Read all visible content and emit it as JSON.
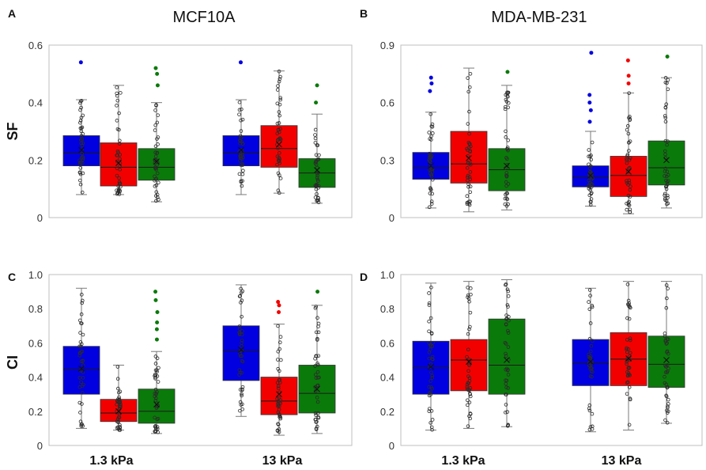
{
  "figure": {
    "titles": [
      "MCF10A",
      "MDA-MB-231"
    ],
    "x_labels": [
      "1.3 kPa",
      "13 kPa"
    ]
  },
  "colors": {
    "blue": "#0000e0",
    "red": "#f20000",
    "green": "#0a7a0a"
  },
  "chart_data": [
    {
      "type": "box",
      "panel": "A",
      "cell_line": "MCF10A",
      "ylabel": "SF",
      "ylim": [
        0,
        0.6
      ],
      "yticks": [
        "0",
        "0.2",
        "0.4",
        "0.6"
      ],
      "groups": [
        "1.3 kPa",
        "13 kPa"
      ],
      "boxes": [
        {
          "group": "1.3 kPa",
          "color": "blue",
          "min": 0.08,
          "q1": 0.18,
          "median": 0.225,
          "mean": 0.235,
          "q3": 0.285,
          "max": 0.41,
          "outliers": [
            0.54
          ]
        },
        {
          "group": "1.3 kPa",
          "color": "red",
          "min": 0.08,
          "q1": 0.11,
          "median": 0.175,
          "mean": 0.19,
          "q3": 0.26,
          "max": 0.46,
          "outliers": []
        },
        {
          "group": "1.3 kPa",
          "color": "green",
          "min": 0.055,
          "q1": 0.13,
          "median": 0.175,
          "mean": 0.195,
          "q3": 0.24,
          "max": 0.4,
          "outliers": [
            0.46,
            0.5,
            0.52
          ]
        },
        {
          "group": "13 kPa",
          "color": "blue",
          "min": 0.08,
          "q1": 0.18,
          "median": 0.225,
          "mean": 0.235,
          "q3": 0.285,
          "max": 0.41,
          "outliers": [
            0.54
          ]
        },
        {
          "group": "13 kPa",
          "color": "red",
          "min": 0.085,
          "q1": 0.175,
          "median": 0.24,
          "mean": 0.255,
          "q3": 0.32,
          "max": 0.51,
          "outliers": []
        },
        {
          "group": "13 kPa",
          "color": "green",
          "min": 0.05,
          "q1": 0.105,
          "median": 0.155,
          "mean": 0.165,
          "q3": 0.205,
          "max": 0.36,
          "outliers": [
            0.4,
            0.46
          ]
        }
      ]
    },
    {
      "type": "box",
      "panel": "B",
      "cell_line": "MDA-MB-231",
      "ylabel": "",
      "ylim": [
        0,
        0.9
      ],
      "yticks": [
        "0",
        "0.3",
        "0.6",
        "0.9"
      ],
      "groups": [
        "1.3 kPa",
        "13 kPa"
      ],
      "boxes": [
        {
          "group": "1.3 kPa",
          "color": "blue",
          "min": 0.05,
          "q1": 0.2,
          "median": 0.26,
          "mean": 0.27,
          "q3": 0.34,
          "max": 0.55,
          "outliers": [
            0.66,
            0.7,
            0.73
          ]
        },
        {
          "group": "1.3 kPa",
          "color": "red",
          "min": 0.03,
          "q1": 0.18,
          "median": 0.28,
          "mean": 0.31,
          "q3": 0.45,
          "max": 0.78,
          "outliers": []
        },
        {
          "group": "1.3 kPa",
          "color": "green",
          "min": 0.04,
          "q1": 0.14,
          "median": 0.25,
          "mean": 0.27,
          "q3": 0.36,
          "max": 0.69,
          "outliers": [
            0.76
          ]
        },
        {
          "group": "13 kPa",
          "color": "blue",
          "min": 0.06,
          "q1": 0.16,
          "median": 0.21,
          "mean": 0.22,
          "q3": 0.27,
          "max": 0.45,
          "outliers": [
            0.5,
            0.56,
            0.6,
            0.64,
            0.86
          ]
        },
        {
          "group": "13 kPa",
          "color": "red",
          "min": 0.02,
          "q1": 0.11,
          "median": 0.22,
          "mean": 0.24,
          "q3": 0.32,
          "max": 0.65,
          "outliers": [
            0.7,
            0.74,
            0.82
          ]
        },
        {
          "group": "13 kPa",
          "color": "green",
          "min": 0.05,
          "q1": 0.17,
          "median": 0.26,
          "mean": 0.3,
          "q3": 0.4,
          "max": 0.73,
          "outliers": [
            0.84
          ]
        }
      ]
    },
    {
      "type": "box",
      "panel": "C",
      "cell_line": "MCF10A",
      "ylabel": "CI",
      "ylim": [
        0,
        1.0
      ],
      "yticks": [
        "0",
        "0.2",
        "0.4",
        "0.6",
        "0.8",
        "1.0"
      ],
      "groups": [
        "1.3 kPa",
        "13 kPa"
      ],
      "boxes": [
        {
          "group": "1.3 kPa",
          "color": "blue",
          "min": 0.1,
          "q1": 0.3,
          "median": 0.445,
          "mean": 0.45,
          "q3": 0.58,
          "max": 0.92,
          "outliers": []
        },
        {
          "group": "1.3 kPa",
          "color": "red",
          "min": 0.09,
          "q1": 0.14,
          "median": 0.19,
          "mean": 0.2,
          "q3": 0.27,
          "max": 0.47,
          "outliers": []
        },
        {
          "group": "1.3 kPa",
          "color": "green",
          "min": 0.07,
          "q1": 0.13,
          "median": 0.2,
          "mean": 0.24,
          "q3": 0.33,
          "max": 0.55,
          "outliers": [
            0.62,
            0.68,
            0.72,
            0.78,
            0.85,
            0.9
          ]
        },
        {
          "group": "13 kPa",
          "color": "blue",
          "min": 0.17,
          "q1": 0.38,
          "median": 0.555,
          "mean": 0.56,
          "q3": 0.7,
          "max": 0.94,
          "outliers": []
        },
        {
          "group": "13 kPa",
          "color": "red",
          "min": 0.06,
          "q1": 0.18,
          "median": 0.26,
          "mean": 0.3,
          "q3": 0.4,
          "max": 0.71,
          "outliers": [
            0.78,
            0.82,
            0.84
          ]
        },
        {
          "group": "13 kPa",
          "color": "green",
          "min": 0.07,
          "q1": 0.19,
          "median": 0.305,
          "mean": 0.33,
          "q3": 0.47,
          "max": 0.82,
          "outliers": [
            0.9
          ]
        }
      ]
    },
    {
      "type": "box",
      "panel": "D",
      "cell_line": "MDA-MB-231",
      "ylabel": "",
      "ylim": [
        0,
        1.0
      ],
      "yticks": [
        "0",
        "0.2",
        "0.4",
        "0.6",
        "0.8",
        "1.0"
      ],
      "groups": [
        "1.3 kPa",
        "13 kPa"
      ],
      "boxes": [
        {
          "group": "1.3 kPa",
          "color": "blue",
          "min": 0.09,
          "q1": 0.3,
          "median": 0.455,
          "mean": 0.46,
          "q3": 0.61,
          "max": 0.95,
          "outliers": []
        },
        {
          "group": "1.3 kPa",
          "color": "red",
          "min": 0.1,
          "q1": 0.32,
          "median": 0.5,
          "mean": 0.49,
          "q3": 0.62,
          "max": 0.96,
          "outliers": []
        },
        {
          "group": "1.3 kPa",
          "color": "green",
          "min": 0.11,
          "q1": 0.3,
          "median": 0.47,
          "mean": 0.5,
          "q3": 0.74,
          "max": 0.97,
          "outliers": []
        },
        {
          "group": "13 kPa",
          "color": "blue",
          "min": 0.08,
          "q1": 0.35,
          "median": 0.48,
          "mean": 0.49,
          "q3": 0.62,
          "max": 0.92,
          "outliers": []
        },
        {
          "group": "13 kPa",
          "color": "red",
          "min": 0.09,
          "q1": 0.35,
          "median": 0.505,
          "mean": 0.51,
          "q3": 0.66,
          "max": 0.96,
          "outliers": []
        },
        {
          "group": "13 kPa",
          "color": "green",
          "min": 0.13,
          "q1": 0.34,
          "median": 0.475,
          "mean": 0.5,
          "q3": 0.64,
          "max": 0.96,
          "outliers": []
        }
      ]
    }
  ]
}
